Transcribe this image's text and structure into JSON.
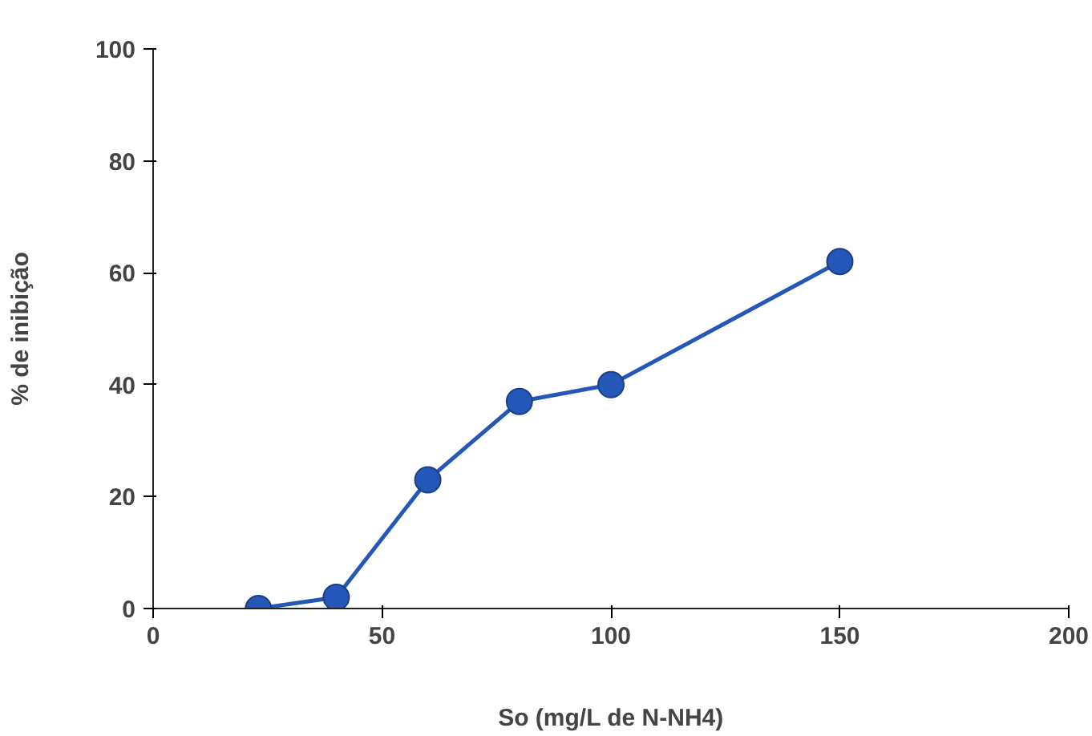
{
  "chart_data": {
    "type": "line",
    "xlabel": "So (mg/L de N-NH4)",
    "ylabel": "% de inibição",
    "x": [
      23,
      40,
      60,
      80,
      100,
      150
    ],
    "series": [
      {
        "color": "#2457b8",
        "values": [
          0,
          2,
          23,
          37,
          40,
          62
        ]
      }
    ],
    "xlim": [
      0,
      200
    ],
    "xticks": [
      0,
      50,
      100,
      150,
      200
    ],
    "ylim": [
      0,
      100
    ],
    "yticks": [
      0,
      20,
      40,
      60,
      80,
      100
    ],
    "marker": "circle",
    "line_style": "solid",
    "grid": false
  }
}
